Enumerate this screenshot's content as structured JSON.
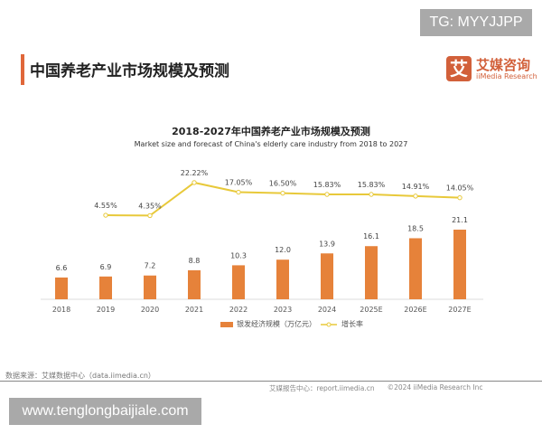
{
  "watermarks": {
    "top": "TG: MYYJJPP",
    "bottom": "www.tenglongbaijiale.com"
  },
  "header": {
    "title": "中国养老产业市场规模及预测",
    "logo_mark": "艾",
    "logo_cn": "艾媒咨询",
    "logo_en": "iiMedia Research"
  },
  "chart_data": {
    "type": "bar+line",
    "title": "2018-2027年中国养老产业市场规模及预测",
    "subtitle": "Market size and forecast of China's elderly care industry from 2018 to 2027",
    "categories": [
      "2018",
      "2019",
      "2020",
      "2021",
      "2022",
      "2023",
      "2024",
      "2025E",
      "2026E",
      "2027E"
    ],
    "series": [
      {
        "name": "银发经济规模（万亿元）",
        "type": "bar",
        "color": "#e6823a",
        "values": [
          6.6,
          6.9,
          7.2,
          8.8,
          10.3,
          12.0,
          13.9,
          16.1,
          18.5,
          21.1
        ],
        "labels": [
          "6.6",
          "6.9",
          "7.2",
          "8.8",
          "10.3",
          "12.0",
          "13.9",
          "16.1",
          "18.5",
          "21.1"
        ]
      },
      {
        "name": "增长率",
        "type": "line",
        "color": "#e8c93a",
        "values": [
          null,
          4.55,
          4.35,
          22.22,
          17.05,
          16.5,
          15.83,
          15.83,
          14.91,
          14.05
        ],
        "labels": [
          "",
          "4.55%",
          "4.35%",
          "22.22%",
          "17.05%",
          "16.50%",
          "15.83%",
          "15.83%",
          "14.91%",
          "14.05%"
        ]
      }
    ],
    "legend": "bottom"
  },
  "footer": {
    "source": "数据来源：艾媒数据中心（data.iimedia.cn）",
    "report": "艾媒报告中心：report.iimedia.cn",
    "copyright": "©2024  iiMedia Research Inc"
  }
}
